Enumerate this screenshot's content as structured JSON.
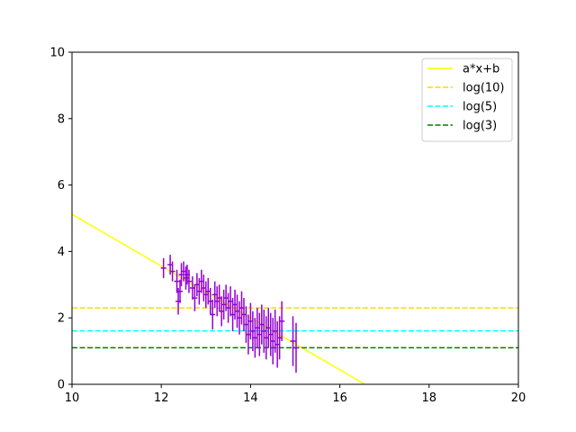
{
  "chart_data": {
    "type": "scatter",
    "xlim": [
      10,
      20
    ],
    "ylim": [
      0,
      10
    ],
    "xticks": [
      "10",
      "12",
      "14",
      "16",
      "18",
      "20"
    ],
    "yticks": [
      "0",
      "2",
      "4",
      "6",
      "8",
      "10"
    ],
    "grid": false,
    "legend_position": "top-right",
    "series": [
      {
        "name": "a*x+b",
        "kind": "line",
        "color": "#ffff00",
        "style": "solid",
        "x": [
          10,
          16.56
        ],
        "y": [
          5.12,
          0
        ]
      },
      {
        "name": "log(10)",
        "kind": "hline",
        "color": "#ffd700",
        "style": "dashed",
        "y": 2.3
      },
      {
        "name": "log(5)",
        "kind": "hline",
        "color": "#00ffff",
        "style": "dashed",
        "y": 1.61
      },
      {
        "name": "log(3)",
        "kind": "hline",
        "color": "#008000",
        "style": "dashed",
        "y": 1.1
      },
      {
        "kind": "errorbar",
        "color": "#9400d3",
        "x": [
          12.05,
          12.2,
          12.25,
          12.35,
          12.38,
          12.42,
          12.45,
          12.5,
          12.55,
          12.58,
          12.62,
          12.7,
          12.75,
          12.8,
          12.85,
          12.9,
          12.95,
          13.0,
          13.05,
          13.1,
          13.15,
          13.2,
          13.25,
          13.3,
          13.35,
          13.4,
          13.45,
          13.5,
          13.55,
          13.6,
          13.65,
          13.7,
          13.75,
          13.8,
          13.85,
          13.9,
          13.95,
          14.0,
          14.05,
          14.1,
          14.15,
          14.2,
          14.25,
          14.3,
          14.35,
          14.4,
          14.45,
          14.5,
          14.55,
          14.6,
          14.65,
          14.7,
          14.95,
          15.02
        ],
        "y": [
          3.5,
          3.6,
          3.4,
          3.1,
          2.5,
          2.8,
          3.3,
          3.4,
          3.2,
          3.3,
          3.1,
          2.9,
          2.6,
          3.0,
          2.8,
          3.1,
          2.9,
          2.7,
          2.8,
          2.5,
          2.1,
          2.7,
          2.5,
          2.6,
          2.2,
          2.4,
          2.6,
          2.3,
          2.5,
          2.1,
          2.4,
          2.2,
          2.0,
          2.3,
          2.1,
          1.8,
          1.5,
          1.9,
          1.6,
          1.4,
          1.7,
          1.5,
          1.8,
          1.6,
          1.4,
          1.7,
          1.5,
          1.3,
          1.6,
          1.2,
          1.4,
          1.9,
          1.3,
          1.1
        ],
        "yerr": [
          0.3,
          0.3,
          0.3,
          0.35,
          0.4,
          0.35,
          0.35,
          0.3,
          0.35,
          0.3,
          0.35,
          0.35,
          0.4,
          0.35,
          0.4,
          0.35,
          0.4,
          0.4,
          0.4,
          0.4,
          0.45,
          0.4,
          0.45,
          0.4,
          0.45,
          0.45,
          0.4,
          0.45,
          0.45,
          0.5,
          0.45,
          0.5,
          0.5,
          0.5,
          0.5,
          0.55,
          0.6,
          0.55,
          0.6,
          0.6,
          0.6,
          0.65,
          0.6,
          0.65,
          0.65,
          0.6,
          0.65,
          0.7,
          0.65,
          0.7,
          0.65,
          0.6,
          0.75,
          0.75
        ],
        "xerr": [
          0.06,
          0.06,
          0.06,
          0.06,
          0.06,
          0.06,
          0.06,
          0.06,
          0.06,
          0.06,
          0.06,
          0.06,
          0.06,
          0.06,
          0.06,
          0.06,
          0.06,
          0.06,
          0.06,
          0.06,
          0.06,
          0.06,
          0.06,
          0.06,
          0.06,
          0.06,
          0.06,
          0.06,
          0.06,
          0.06,
          0.06,
          0.06,
          0.06,
          0.06,
          0.06,
          0.06,
          0.06,
          0.06,
          0.06,
          0.06,
          0.06,
          0.06,
          0.06,
          0.06,
          0.06,
          0.06,
          0.06,
          0.06,
          0.06,
          0.06,
          0.06,
          0.06,
          0.06,
          0.06
        ]
      }
    ]
  }
}
